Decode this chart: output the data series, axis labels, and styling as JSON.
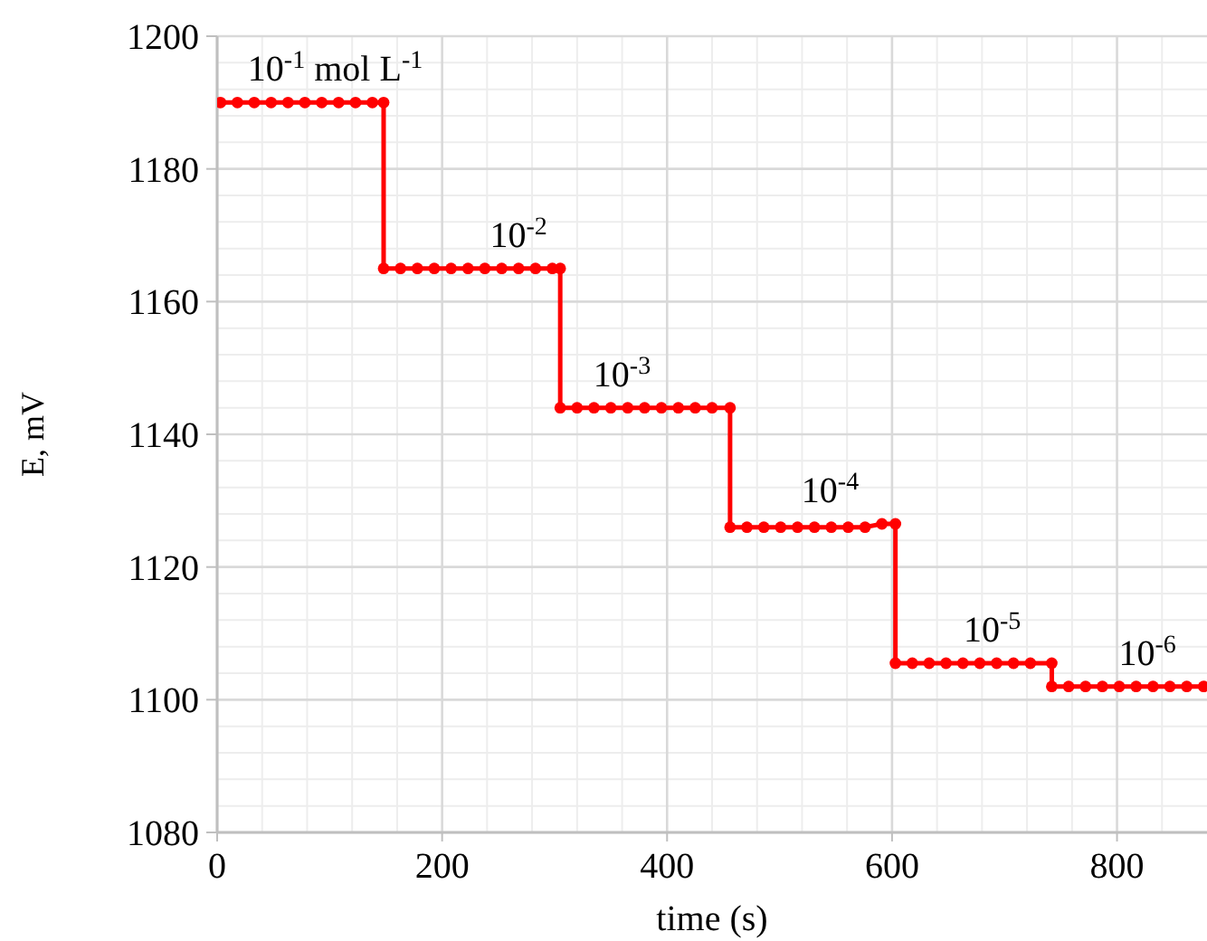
{
  "chart_data": {
    "type": "line",
    "xlabel": "time (s)",
    "ylabel": "E, mV",
    "xlim": [
      0,
      880
    ],
    "xticks": [
      0,
      200,
      400,
      600,
      800
    ],
    "ylim": [
      1080,
      1200
    ],
    "yticks": [
      1080,
      1100,
      1120,
      1140,
      1160,
      1180,
      1200
    ],
    "grid": true,
    "marker": "circle",
    "line_style": "solid",
    "series": [
      {
        "color": "#ff0000",
        "x": [
          3,
          18,
          33,
          48,
          63,
          78,
          93,
          108,
          123,
          138,
          148,
          148,
          163,
          178,
          193,
          208,
          223,
          238,
          253,
          268,
          283,
          298,
          305,
          305,
          320,
          335,
          350,
          365,
          380,
          395,
          410,
          425,
          440,
          456,
          456,
          471,
          486,
          501,
          516,
          531,
          546,
          561,
          576,
          591,
          603,
          603,
          618,
          633,
          648,
          663,
          678,
          693,
          708,
          723,
          742,
          742,
          757,
          772,
          787,
          802,
          817,
          832,
          847,
          862,
          877
        ],
        "values": [
          1190,
          1190,
          1190,
          1190,
          1190,
          1190,
          1190,
          1190,
          1190,
          1190,
          1190,
          1165,
          1165,
          1165,
          1165,
          1165,
          1165,
          1165,
          1165,
          1165,
          1165,
          1165,
          1165,
          1144,
          1144,
          1144,
          1144,
          1144,
          1144,
          1144,
          1144,
          1144,
          1144,
          1144,
          1126,
          1126,
          1126,
          1126,
          1126,
          1126,
          1126,
          1126,
          1126,
          1126.5,
          1126.5,
          1105.5,
          1105.5,
          1105.5,
          1105.5,
          1105.5,
          1105.5,
          1105.5,
          1105.5,
          1105.5,
          1105.5,
          1102,
          1102,
          1102,
          1102,
          1102,
          1102,
          1102,
          1102,
          1102,
          1102
        ]
      }
    ],
    "annotations": [
      {
        "text": "10$^{-1}$  mol L$^{-1}$",
        "x": 105,
        "y": 1190
      },
      {
        "text": "10$^{-2}$",
        "x": 268,
        "y": 1165
      },
      {
        "text": "10$^{-3}$",
        "x": 360,
        "y": 1144
      },
      {
        "text": "10$^{-4}$",
        "x": 545,
        "y": 1126.5
      },
      {
        "text": "10$^{-5}$",
        "x": 689,
        "y": 1105.5
      },
      {
        "text": "10$^{-6}$",
        "x": 827,
        "y": 1102
      }
    ]
  }
}
